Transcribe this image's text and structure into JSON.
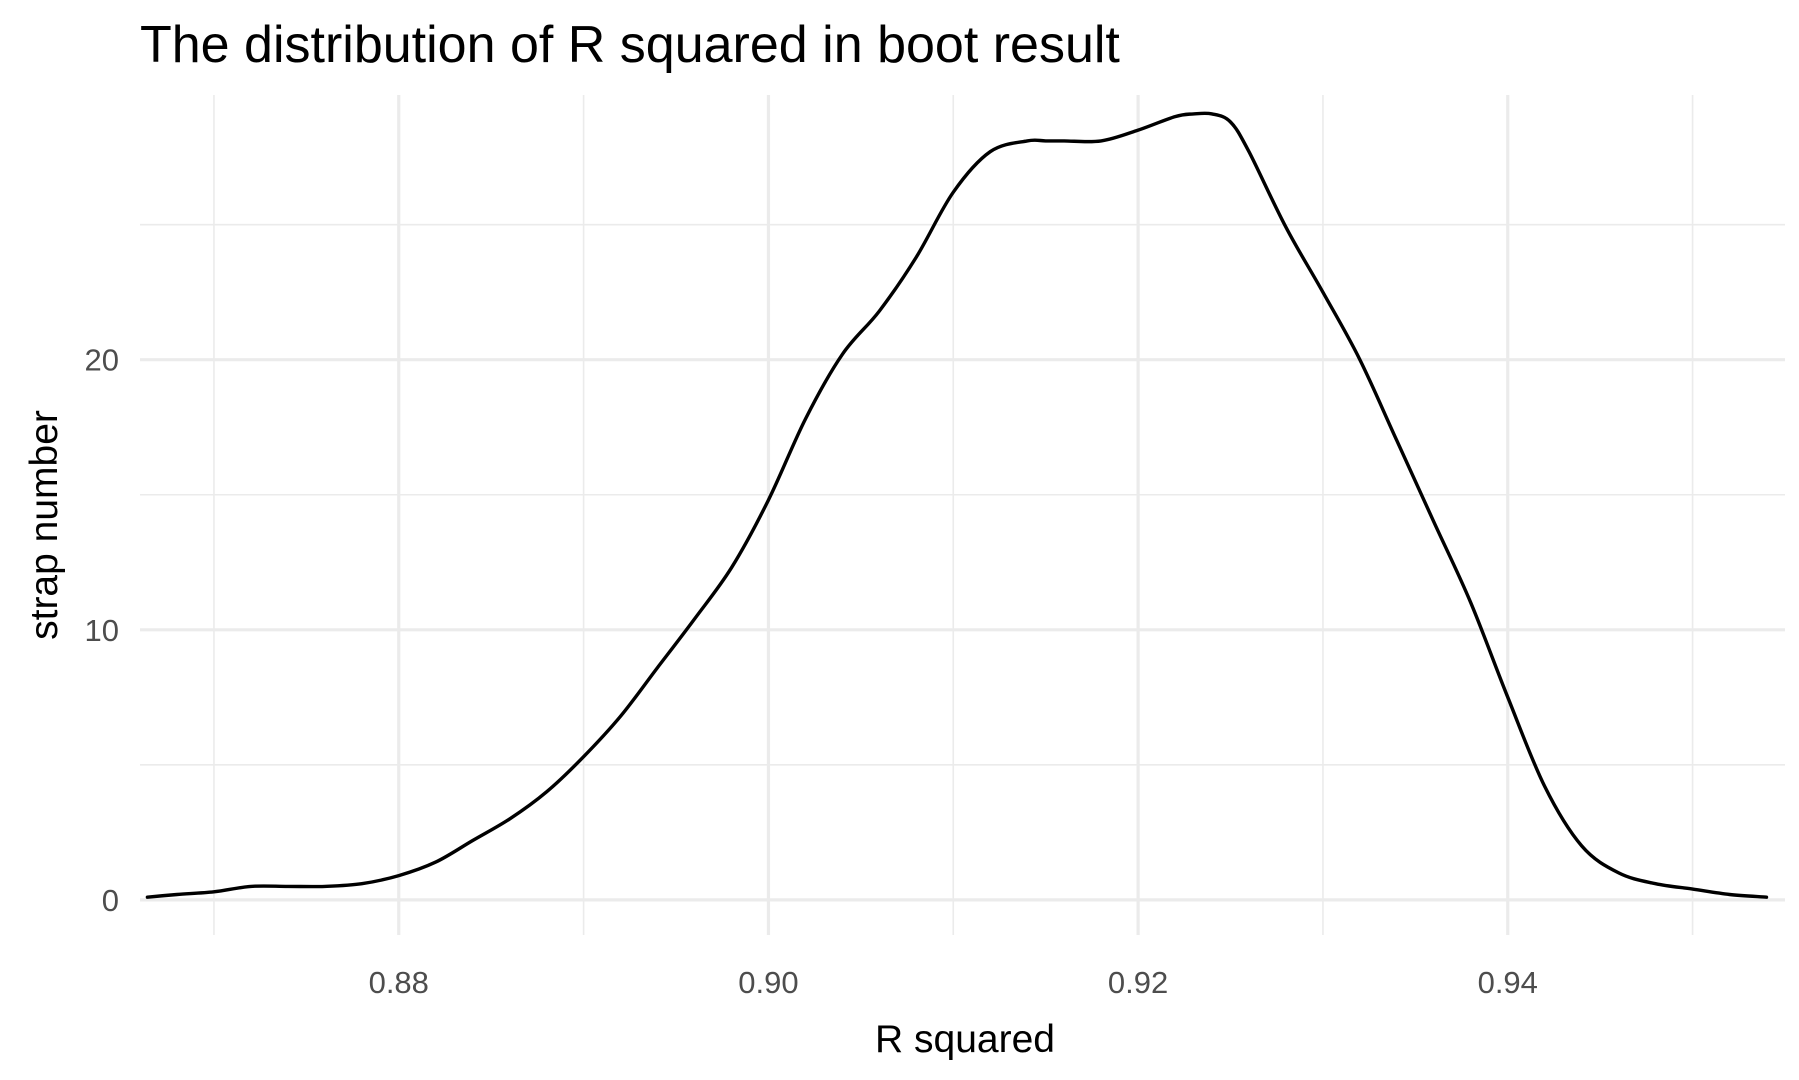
{
  "chart_data": {
    "type": "line",
    "title": "The distribution of R squared in boot result",
    "xlabel": "R squared",
    "ylabel": "strap number",
    "xlim": [
      0.866,
      0.955
    ],
    "ylim": [
      -1.3,
      29.8
    ],
    "x_ticks": [
      0.88,
      0.9,
      0.92,
      0.94
    ],
    "x_tick_labels": [
      "0.88",
      "0.90",
      "0.92",
      "0.94"
    ],
    "x_minor_ticks": [
      0.87,
      0.89,
      0.91,
      0.93,
      0.95
    ],
    "y_ticks": [
      0,
      10,
      20
    ],
    "y_tick_labels": [
      "0",
      "10",
      "20"
    ],
    "y_minor_ticks": [
      5,
      15,
      25
    ],
    "grid": true,
    "legend": "none",
    "line_color": "#000000",
    "series": [
      {
        "x": [
          0.8664,
          0.868,
          0.87,
          0.872,
          0.874,
          0.876,
          0.878,
          0.88,
          0.882,
          0.884,
          0.886,
          0.888,
          0.89,
          0.892,
          0.894,
          0.896,
          0.898,
          0.9,
          0.902,
          0.904,
          0.906,
          0.908,
          0.91,
          0.912,
          0.914,
          0.915,
          0.916,
          0.918,
          0.92,
          0.922,
          0.923,
          0.924,
          0.925,
          0.926,
          0.928,
          0.93,
          0.932,
          0.934,
          0.936,
          0.938,
          0.94,
          0.942,
          0.944,
          0.946,
          0.948,
          0.95,
          0.952,
          0.954
        ],
        "y": [
          0.1,
          0.2,
          0.3,
          0.5,
          0.5,
          0.5,
          0.6,
          0.9,
          1.4,
          2.2,
          3.0,
          4.0,
          5.3,
          6.8,
          8.6,
          10.4,
          12.3,
          14.8,
          17.8,
          20.2,
          21.8,
          23.8,
          26.2,
          27.7,
          28.1,
          28.1,
          28.1,
          28.1,
          28.5,
          29.0,
          29.1,
          29.1,
          28.8,
          27.7,
          24.9,
          22.5,
          20.0,
          17.0,
          14.0,
          11.0,
          7.5,
          4.2,
          2.0,
          1.0,
          0.6,
          0.4,
          0.2,
          0.1
        ]
      }
    ]
  }
}
